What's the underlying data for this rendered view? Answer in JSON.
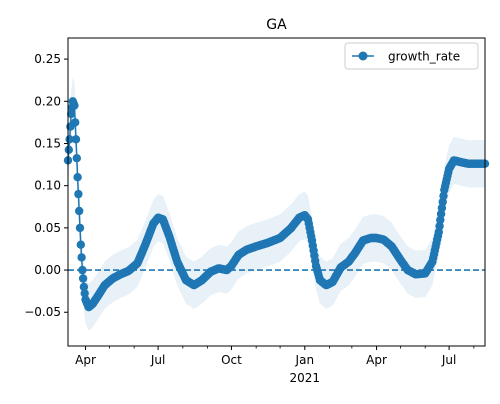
{
  "chart_data": {
    "type": "line",
    "title": "GA",
    "xlabel": "",
    "ylabel": "",
    "x_axis": {
      "type": "date",
      "range": [
        "2020-03-10",
        "2021-08-15"
      ],
      "major_ticks": [
        {
          "date": "2020-04-01",
          "label": "Apr",
          "sublabel": ""
        },
        {
          "date": "2020-07-01",
          "label": "Jul",
          "sublabel": ""
        },
        {
          "date": "2020-10-01",
          "label": "Oct",
          "sublabel": ""
        },
        {
          "date": "2021-01-01",
          "label": "Jan",
          "sublabel": "2021"
        },
        {
          "date": "2021-04-01",
          "label": "Apr",
          "sublabel": ""
        },
        {
          "date": "2021-07-01",
          "label": "Jul",
          "sublabel": ""
        }
      ],
      "minor_ticks": [
        "2020-05-01",
        "2020-06-01",
        "2020-08-01",
        "2020-09-01",
        "2020-11-01",
        "2020-12-01",
        "2021-02-01",
        "2021-03-01",
        "2021-05-01",
        "2021-06-01",
        "2021-08-01"
      ]
    },
    "y_axis": {
      "range": [
        -0.09,
        0.275
      ],
      "ticks": [
        -0.05,
        0.0,
        0.05,
        0.1,
        0.15,
        0.2,
        0.25
      ],
      "tick_labels": [
        "−0.05",
        "0.00",
        "0.05",
        "0.10",
        "0.15",
        "0.20",
        "0.25"
      ]
    },
    "grid": false,
    "legend": {
      "position": "top-right",
      "entries": [
        "growth_rate"
      ]
    },
    "reference_line": {
      "y": 0.0,
      "style": "dashed"
    },
    "colors": {
      "series": "#1f77b4",
      "band": "#1f77b4"
    },
    "series": [
      {
        "name": "growth_rate",
        "marker": "circle",
        "points": [
          {
            "x": "2020-03-10",
            "y": 0.13
          },
          {
            "x": "2020-03-12",
            "y": 0.155
          },
          {
            "x": "2020-03-14",
            "y": 0.185
          },
          {
            "x": "2020-03-16",
            "y": 0.2
          },
          {
            "x": "2020-03-18",
            "y": 0.195
          },
          {
            "x": "2020-03-20",
            "y": 0.155
          },
          {
            "x": "2020-03-22",
            "y": 0.11
          },
          {
            "x": "2020-03-24",
            "y": 0.07
          },
          {
            "x": "2020-03-26",
            "y": 0.03
          },
          {
            "x": "2020-03-28",
            "y": 0.0
          },
          {
            "x": "2020-03-30",
            "y": -0.02
          },
          {
            "x": "2020-04-01",
            "y": -0.035
          },
          {
            "x": "2020-04-05",
            "y": -0.044
          },
          {
            "x": "2020-04-10",
            "y": -0.04
          },
          {
            "x": "2020-04-17",
            "y": -0.03
          },
          {
            "x": "2020-04-25",
            "y": -0.018
          },
          {
            "x": "2020-05-05",
            "y": -0.01
          },
          {
            "x": "2020-05-15",
            "y": -0.005
          },
          {
            "x": "2020-05-25",
            "y": -0.001
          },
          {
            "x": "2020-06-05",
            "y": 0.008
          },
          {
            "x": "2020-06-15",
            "y": 0.03
          },
          {
            "x": "2020-06-25",
            "y": 0.055
          },
          {
            "x": "2020-07-01",
            "y": 0.062
          },
          {
            "x": "2020-07-07",
            "y": 0.06
          },
          {
            "x": "2020-07-15",
            "y": 0.04
          },
          {
            "x": "2020-07-25",
            "y": 0.01
          },
          {
            "x": "2020-08-05",
            "y": -0.012
          },
          {
            "x": "2020-08-15",
            "y": -0.018
          },
          {
            "x": "2020-08-25",
            "y": -0.012
          },
          {
            "x": "2020-09-05",
            "y": -0.002
          },
          {
            "x": "2020-09-15",
            "y": 0.002
          },
          {
            "x": "2020-09-25",
            "y": 0.0
          },
          {
            "x": "2020-10-01",
            "y": 0.005
          },
          {
            "x": "2020-10-10",
            "y": 0.018
          },
          {
            "x": "2020-10-20",
            "y": 0.024
          },
          {
            "x": "2020-11-01",
            "y": 0.028
          },
          {
            "x": "2020-11-15",
            "y": 0.032
          },
          {
            "x": "2020-12-01",
            "y": 0.038
          },
          {
            "x": "2020-12-15",
            "y": 0.05
          },
          {
            "x": "2020-12-25",
            "y": 0.062
          },
          {
            "x": "2021-01-01",
            "y": 0.065
          },
          {
            "x": "2021-01-05",
            "y": 0.06
          },
          {
            "x": "2021-01-10",
            "y": 0.035
          },
          {
            "x": "2021-01-15",
            "y": 0.005
          },
          {
            "x": "2021-01-20",
            "y": -0.012
          },
          {
            "x": "2021-01-28",
            "y": -0.018
          },
          {
            "x": "2021-02-05",
            "y": -0.014
          },
          {
            "x": "2021-02-15",
            "y": 0.003
          },
          {
            "x": "2021-02-25",
            "y": 0.01
          },
          {
            "x": "2021-03-05",
            "y": 0.02
          },
          {
            "x": "2021-03-15",
            "y": 0.035
          },
          {
            "x": "2021-03-25",
            "y": 0.038
          },
          {
            "x": "2021-04-01",
            "y": 0.038
          },
          {
            "x": "2021-04-10",
            "y": 0.036
          },
          {
            "x": "2021-04-20",
            "y": 0.028
          },
          {
            "x": "2021-05-01",
            "y": 0.012
          },
          {
            "x": "2021-05-10",
            "y": 0.0
          },
          {
            "x": "2021-05-20",
            "y": -0.005
          },
          {
            "x": "2021-06-01",
            "y": -0.004
          },
          {
            "x": "2021-06-10",
            "y": 0.01
          },
          {
            "x": "2021-06-18",
            "y": 0.045
          },
          {
            "x": "2021-06-25",
            "y": 0.095
          },
          {
            "x": "2021-07-01",
            "y": 0.12
          },
          {
            "x": "2021-07-07",
            "y": 0.13
          },
          {
            "x": "2021-07-15",
            "y": 0.128
          },
          {
            "x": "2021-07-25",
            "y": 0.126
          },
          {
            "x": "2021-08-05",
            "y": 0.126
          },
          {
            "x": "2021-08-15",
            "y": 0.126
          }
        ],
        "band_halfwidth": 0.028
      }
    ]
  }
}
